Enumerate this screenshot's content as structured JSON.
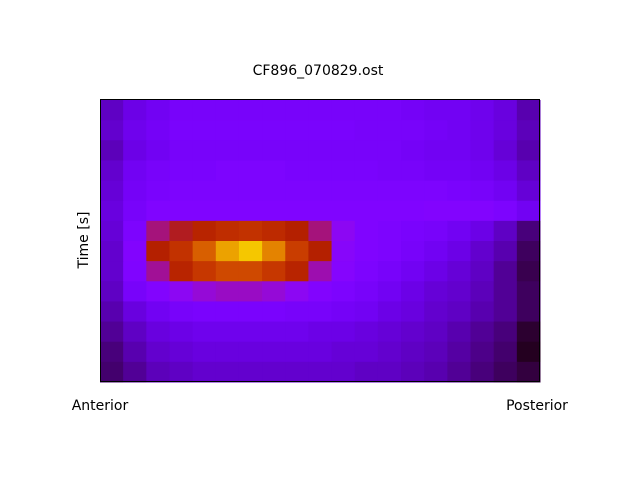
{
  "chart_data": {
    "type": "heatmap",
    "title": "CF896_070829.ost",
    "ylabel": "Time [s]",
    "x_end_labels": [
      "Anterior",
      "Posterior"
    ],
    "colormap": "gnuplot",
    "values": [
      [
        0.14,
        0.18,
        0.2,
        0.22,
        0.22,
        0.22,
        0.22,
        0.22,
        0.22,
        0.22,
        0.22,
        0.22,
        0.22,
        0.21,
        0.2,
        0.2,
        0.19,
        0.17,
        0.12
      ],
      [
        0.15,
        0.19,
        0.21,
        0.23,
        0.23,
        0.23,
        0.23,
        0.23,
        0.23,
        0.23,
        0.23,
        0.22,
        0.22,
        0.22,
        0.21,
        0.2,
        0.19,
        0.17,
        0.13
      ],
      [
        0.13,
        0.18,
        0.2,
        0.22,
        0.22,
        0.22,
        0.22,
        0.22,
        0.22,
        0.22,
        0.22,
        0.22,
        0.22,
        0.21,
        0.2,
        0.2,
        0.19,
        0.16,
        0.12
      ],
      [
        0.15,
        0.2,
        0.22,
        0.23,
        0.23,
        0.24,
        0.24,
        0.24,
        0.23,
        0.23,
        0.23,
        0.23,
        0.22,
        0.22,
        0.21,
        0.21,
        0.2,
        0.18,
        0.14
      ],
      [
        0.16,
        0.21,
        0.23,
        0.24,
        0.24,
        0.24,
        0.24,
        0.24,
        0.24,
        0.24,
        0.24,
        0.24,
        0.24,
        0.24,
        0.24,
        0.23,
        0.22,
        0.2,
        0.16
      ],
      [
        0.17,
        0.22,
        0.25,
        0.25,
        0.25,
        0.25,
        0.25,
        0.25,
        0.25,
        0.25,
        0.25,
        0.25,
        0.25,
        0.25,
        0.26,
        0.26,
        0.26,
        0.24,
        0.2
      ],
      [
        0.16,
        0.24,
        0.42,
        0.48,
        0.52,
        0.56,
        0.58,
        0.55,
        0.5,
        0.42,
        0.3,
        0.25,
        0.24,
        0.23,
        0.22,
        0.2,
        0.18,
        0.14,
        0.08
      ],
      [
        0.15,
        0.26,
        0.5,
        0.58,
        0.72,
        0.86,
        0.92,
        0.8,
        0.62,
        0.5,
        0.28,
        0.25,
        0.24,
        0.22,
        0.2,
        0.18,
        0.15,
        0.12,
        0.06
      ],
      [
        0.15,
        0.25,
        0.4,
        0.52,
        0.6,
        0.66,
        0.66,
        0.6,
        0.52,
        0.38,
        0.27,
        0.24,
        0.22,
        0.2,
        0.18,
        0.16,
        0.14,
        0.1,
        0.05
      ],
      [
        0.14,
        0.22,
        0.26,
        0.3,
        0.34,
        0.36,
        0.36,
        0.34,
        0.3,
        0.26,
        0.24,
        0.22,
        0.2,
        0.18,
        0.16,
        0.15,
        0.13,
        0.1,
        0.06
      ],
      [
        0.12,
        0.17,
        0.2,
        0.22,
        0.23,
        0.23,
        0.23,
        0.23,
        0.22,
        0.22,
        0.21,
        0.2,
        0.18,
        0.17,
        0.15,
        0.14,
        0.12,
        0.1,
        0.06
      ],
      [
        0.1,
        0.14,
        0.17,
        0.18,
        0.19,
        0.19,
        0.19,
        0.19,
        0.19,
        0.18,
        0.18,
        0.17,
        0.16,
        0.15,
        0.14,
        0.12,
        0.1,
        0.08,
        0.03
      ],
      [
        0.08,
        0.12,
        0.15,
        0.16,
        0.17,
        0.17,
        0.17,
        0.17,
        0.17,
        0.17,
        0.16,
        0.16,
        0.15,
        0.14,
        0.13,
        0.11,
        0.09,
        0.07,
        0.02
      ],
      [
        0.07,
        0.1,
        0.13,
        0.14,
        0.15,
        0.15,
        0.15,
        0.15,
        0.15,
        0.15,
        0.15,
        0.14,
        0.14,
        0.13,
        0.12,
        0.1,
        0.08,
        0.06,
        0.04
      ]
    ]
  }
}
